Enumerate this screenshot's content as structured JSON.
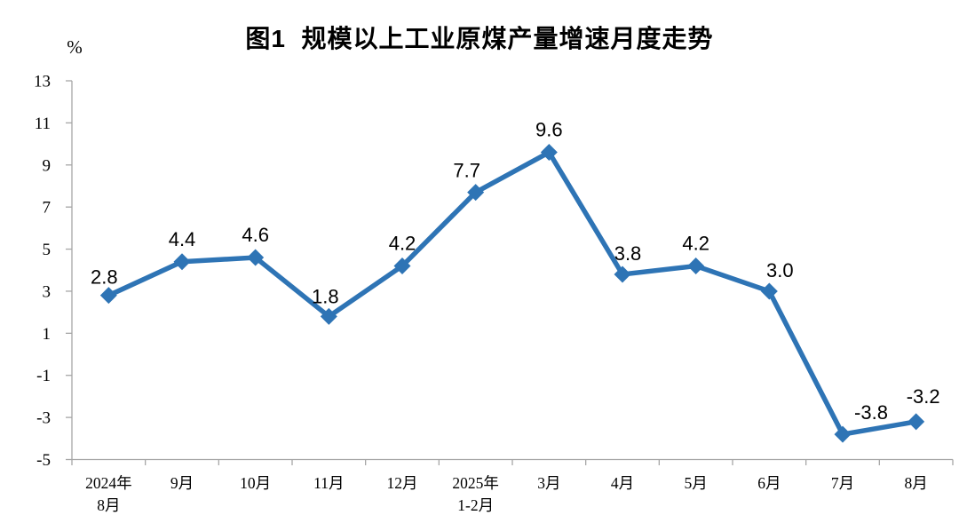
{
  "page": {
    "background": "#FFFFFF"
  },
  "chart_data": {
    "type": "line",
    "title": "图1  规模以上工业原煤产量增速月度走势",
    "unit_label": "%",
    "categories": [
      [
        "2024年",
        "8月"
      ],
      [
        "9月"
      ],
      [
        "10月"
      ],
      [
        "11月"
      ],
      [
        "12月"
      ],
      [
        "2025年",
        "1-2月"
      ],
      [
        "3月"
      ],
      [
        "4月"
      ],
      [
        "5月"
      ],
      [
        "6月"
      ],
      [
        "7月"
      ],
      [
        "8月"
      ]
    ],
    "values": [
      2.8,
      4.4,
      4.6,
      1.8,
      4.2,
      7.7,
      9.6,
      3.8,
      4.2,
      3.0,
      -3.8,
      -3.2
    ],
    "point_labels": [
      "2.8",
      "4.4",
      "4.6",
      "1.8",
      "4.2",
      "7.7",
      "9.6",
      "3.8",
      "4.2",
      "3.0",
      "-3.8",
      "-3.2"
    ],
    "ylim": [
      -5,
      13
    ],
    "yticks": [
      13,
      11,
      9,
      7,
      5,
      3,
      1,
      -1,
      -3,
      -5
    ],
    "grid": false,
    "legend": "none",
    "marker": "diamond",
    "colors": {
      "line": "#2E74B5",
      "marker": "#2E74B5",
      "axis": "#A6A6A6",
      "text": "#000000"
    }
  }
}
